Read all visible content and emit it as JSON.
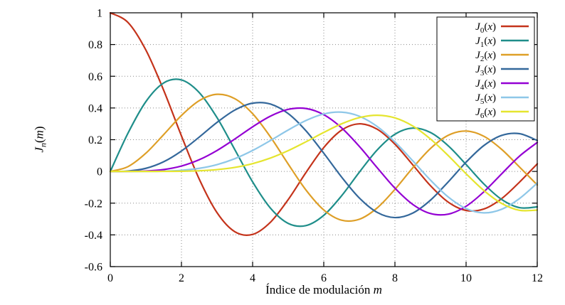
{
  "chart_data": {
    "type": "line",
    "title": "",
    "xlabel": "Índice de modulación m",
    "xlabel_parts": {
      "text": "Índice de modulación ",
      "var": "m"
    },
    "ylabel": "J_n(m)",
    "ylabel_parts": {
      "base": "J",
      "sub": "n",
      "open": "(",
      "var": "m",
      "close": ")"
    },
    "xlim": [
      0,
      12
    ],
    "ylim": [
      -0.6,
      1
    ],
    "xticks": [
      "0",
      "2",
      "4",
      "6",
      "8",
      "10",
      "12"
    ],
    "yticks": [
      "1",
      "0.8",
      "0.6",
      "0.4",
      "0.2",
      "0",
      "-0.2",
      "-0.4",
      "-0.6"
    ],
    "grid": "dotted",
    "colors": {
      "background": "#ffffff",
      "border": "#000000",
      "grid": "#8a8a8a",
      "text": "#000000"
    },
    "legend": {
      "position": "top-right",
      "base": "J",
      "open": "(",
      "var": "x",
      "close": ")"
    },
    "x": [
      0,
      0.5,
      1,
      1.5,
      2,
      2.5,
      3,
      3.5,
      4,
      4.5,
      5,
      5.5,
      6,
      6.5,
      7,
      7.5,
      8,
      8.5,
      9,
      9.5,
      10,
      10.5,
      11,
      11.5,
      12
    ],
    "series": [
      {
        "name": "J0(x)",
        "sub": "0",
        "color": "#c4331b",
        "values": [
          1.0,
          0.9385,
          0.7652,
          0.5118,
          0.2239,
          -0.0484,
          -0.2601,
          -0.3801,
          -0.3971,
          -0.3205,
          -0.1776,
          -0.0068,
          0.1506,
          0.2601,
          0.3001,
          0.2663,
          0.1717,
          0.0419,
          -0.0903,
          -0.1939,
          -0.2459,
          -0.2366,
          -0.1712,
          -0.0677,
          0.0477
        ]
      },
      {
        "name": "J1(x)",
        "sub": "1",
        "color": "#1f8e8a",
        "values": [
          0,
          0.2423,
          0.4401,
          0.5579,
          0.5767,
          0.4971,
          0.3391,
          0.1374,
          -0.066,
          -0.2311,
          -0.3276,
          -0.3414,
          -0.2767,
          -0.1538,
          -0.0047,
          0.1352,
          0.2346,
          0.2731,
          0.2453,
          0.1613,
          0.0435,
          -0.0789,
          -0.1768,
          -0.2284,
          -0.2234
        ]
      },
      {
        "name": "J2(x)",
        "sub": "2",
        "color": "#de9f27",
        "values": [
          0,
          0.0306,
          0.1149,
          0.2321,
          0.3528,
          0.4461,
          0.4861,
          0.4586,
          0.3641,
          0.2178,
          0.0466,
          -0.1173,
          -0.2429,
          -0.3074,
          -0.3014,
          -0.2303,
          -0.113,
          0.0223,
          0.1448,
          0.2279,
          0.2546,
          0.2216,
          0.139,
          0.028,
          -0.0849
        ]
      },
      {
        "name": "J3(x)",
        "sub": "3",
        "color": "#34689b",
        "values": [
          0,
          0.0026,
          0.0196,
          0.061,
          0.1289,
          0.2166,
          0.3091,
          0.3868,
          0.4302,
          0.4247,
          0.3648,
          0.2561,
          0.1148,
          -0.0353,
          -0.1676,
          -0.2581,
          -0.2911,
          -0.2626,
          -0.1809,
          -0.0653,
          0.0584,
          0.1633,
          0.2273,
          0.2381,
          0.1951
        ]
      },
      {
        "name": "J4(x)",
        "sub": "4",
        "color": "#9400d3",
        "values": [
          0,
          0.0002,
          0.0025,
          0.0118,
          0.034,
          0.0738,
          0.132,
          0.2044,
          0.2811,
          0.3484,
          0.3912,
          0.3967,
          0.3576,
          0.2748,
          0.1578,
          0.0238,
          -0.1054,
          -0.2077,
          -0.2655,
          -0.2691,
          -0.2196,
          -0.1283,
          -0.015,
          0.0962,
          0.1825
        ]
      },
      {
        "name": "J5(x)",
        "sub": "5",
        "color": "#8ec7e8",
        "values": [
          0,
          0.0,
          0.0002,
          0.0018,
          0.007,
          0.0195,
          0.043,
          0.0804,
          0.1321,
          0.1947,
          0.2611,
          0.3209,
          0.3621,
          0.3736,
          0.3479,
          0.2835,
          0.1858,
          0.0672,
          -0.055,
          -0.1613,
          -0.2341,
          -0.2611,
          -0.2383,
          -0.1712,
          -0.0735
        ]
      },
      {
        "name": "J6(x)",
        "sub": "6",
        "color": "#e5e52f",
        "values": [
          0,
          0.0,
          0.0,
          0.0002,
          0.0012,
          0.0042,
          0.0114,
          0.0254,
          0.0491,
          0.0843,
          0.131,
          0.1868,
          0.2458,
          0.3,
          0.3392,
          0.3541,
          0.3376,
          0.2867,
          0.2043,
          0.0993,
          -0.0145,
          -0.1203,
          -0.2016,
          -0.245,
          -0.2437
        ]
      }
    ]
  }
}
